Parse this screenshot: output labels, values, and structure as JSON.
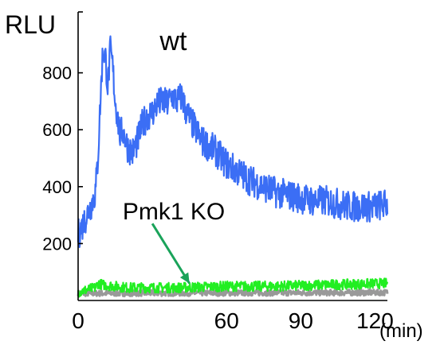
{
  "chart_data": {
    "type": "line",
    "ylabel": "RLU",
    "xlabel": "(min)",
    "x_ticks": [
      "0",
      "60",
      "90",
      "120"
    ],
    "x_tick_values": [
      0,
      60,
      90,
      120
    ],
    "y_ticks": [
      "200",
      "400",
      "600",
      "800"
    ],
    "y_tick_values": [
      200,
      400,
      600,
      800
    ],
    "xlim": [
      0,
      125
    ],
    "ylim": [
      0,
      1000
    ],
    "grid": false,
    "legend": "none",
    "series": [
      {
        "name": "wt",
        "color": "#3b6ef5",
        "noise": 55,
        "points": [
          [
            0,
            230
          ],
          [
            3,
            290
          ],
          [
            5,
            330
          ],
          [
            7,
            380
          ],
          [
            8,
            500
          ],
          [
            9,
            700
          ],
          [
            10,
            880
          ],
          [
            11,
            860
          ],
          [
            12,
            750
          ],
          [
            13,
            880
          ],
          [
            14,
            820
          ],
          [
            15,
            700
          ],
          [
            17,
            580
          ],
          [
            18,
            600
          ],
          [
            20,
            540
          ],
          [
            22,
            520
          ],
          [
            24,
            560
          ],
          [
            26,
            620
          ],
          [
            28,
            650
          ],
          [
            30,
            660
          ],
          [
            32,
            690
          ],
          [
            34,
            700
          ],
          [
            36,
            690
          ],
          [
            38,
            720
          ],
          [
            40,
            700
          ],
          [
            42,
            720
          ],
          [
            43,
            680
          ],
          [
            45,
            640
          ],
          [
            50,
            560
          ],
          [
            55,
            530
          ],
          [
            60,
            480
          ],
          [
            65,
            450
          ],
          [
            70,
            420
          ],
          [
            75,
            400
          ],
          [
            80,
            380
          ],
          [
            85,
            370
          ],
          [
            90,
            360
          ],
          [
            95,
            350
          ],
          [
            100,
            350
          ],
          [
            105,
            340
          ],
          [
            110,
            330
          ],
          [
            115,
            330
          ],
          [
            120,
            330
          ],
          [
            125,
            340
          ]
        ]
      },
      {
        "name": "",
        "color": "#999999",
        "noise": 10,
        "points": [
          [
            0,
            25
          ],
          [
            125,
            28
          ]
        ]
      },
      {
        "name": "Pmk1 KO",
        "color": "#22ee22",
        "noise": 18,
        "points": [
          [
            0,
            30
          ],
          [
            7,
            45
          ],
          [
            8,
            60
          ],
          [
            10,
            55
          ],
          [
            20,
            45
          ],
          [
            40,
            45
          ],
          [
            60,
            50
          ],
          [
            80,
            50
          ],
          [
            100,
            55
          ],
          [
            125,
            60
          ]
        ]
      }
    ],
    "annotations": [
      {
        "text": "wt",
        "x": 33,
        "y": 880,
        "size": 34
      },
      {
        "text": "Pmk1 KO",
        "x": 18,
        "y": 285,
        "size": 30
      }
    ],
    "arrow": {
      "from": [
        30,
        270
      ],
      "to": [
        45,
        60
      ],
      "color": "#1aa35a"
    }
  }
}
